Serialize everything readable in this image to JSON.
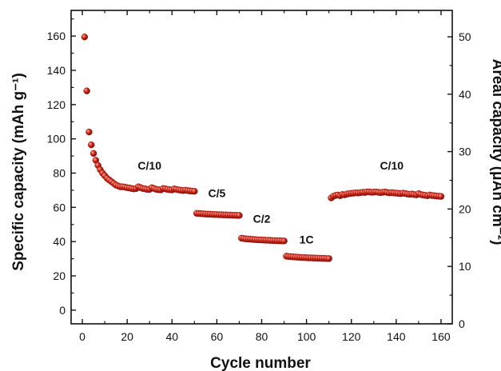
{
  "chart_data": {
    "type": "scatter",
    "title": "",
    "xlabel": "Cycle number",
    "ylabel": "Specific capacity (mAh g⁻¹)",
    "ylabel_right": "Areal capacity (μAh cm⁻²)",
    "xlim": [
      -5,
      165
    ],
    "ylim": [
      -8,
      175
    ],
    "ylim_right": [
      0,
      54.6
    ],
    "x_ticks": [
      "0",
      "20",
      "40",
      "60",
      "80",
      "100",
      "120",
      "140",
      "160"
    ],
    "y_ticks": [
      "0",
      "20",
      "40",
      "60",
      "80",
      "100",
      "120",
      "140",
      "160"
    ],
    "y_right_ticks": [
      "0",
      "10",
      "20",
      "30",
      "40",
      "50"
    ],
    "marker_color": "#d42a1c",
    "annotations": [
      {
        "text": "C/10",
        "x": 30,
        "y": 82
      },
      {
        "text": "C/5",
        "x": 60,
        "y": 66
      },
      {
        "text": "C/2",
        "x": 80,
        "y": 51
      },
      {
        "text": "1C",
        "x": 100,
        "y": 39
      },
      {
        "text": "C/10",
        "x": 138,
        "y": 82
      }
    ],
    "series": [
      {
        "x": [
          1,
          2,
          3,
          4,
          5,
          6,
          7,
          8,
          9,
          10,
          11,
          12,
          13,
          14,
          15,
          16,
          17,
          18,
          19,
          20,
          21,
          22,
          23,
          24,
          25,
          26,
          27,
          28,
          29,
          30,
          31,
          32,
          33,
          34,
          35,
          36,
          37,
          38,
          39,
          40,
          41,
          42,
          43,
          44,
          45,
          46,
          47,
          48,
          49,
          50,
          51,
          52,
          53,
          54,
          55,
          56,
          57,
          58,
          59,
          60,
          61,
          62,
          63,
          64,
          65,
          66,
          67,
          68,
          69,
          70,
          71,
          72,
          73,
          74,
          75,
          76,
          77,
          78,
          79,
          80,
          81,
          82,
          83,
          84,
          85,
          86,
          87,
          88,
          89,
          90,
          91,
          92,
          93,
          94,
          95,
          96,
          97,
          98,
          99,
          100,
          101,
          102,
          103,
          104,
          105,
          106,
          107,
          108,
          109,
          110,
          111,
          112,
          113,
          114,
          115,
          116,
          117,
          118,
          119,
          120,
          121,
          122,
          123,
          124,
          125,
          126,
          127,
          128,
          129,
          130,
          131,
          132,
          133,
          134,
          135,
          136,
          137,
          138,
          139,
          140,
          141,
          142,
          143,
          144,
          145,
          146,
          147,
          148,
          149,
          150,
          151,
          152,
          153,
          154,
          155,
          156,
          157,
          158,
          159,
          160
        ],
        "values": [
          159.5,
          128,
          104,
          96.5,
          91.5,
          87.5,
          84.5,
          82,
          80,
          78.5,
          77,
          76,
          75,
          74,
          73,
          72.5,
          72,
          72,
          71.8,
          71.5,
          71.3,
          71,
          70.8,
          71,
          72,
          71.5,
          71,
          70.8,
          70.5,
          70.5,
          71.5,
          71,
          70.5,
          70.3,
          70.2,
          71,
          70.8,
          70.5,
          70.3,
          70.2,
          70.8,
          70.5,
          70.2,
          70,
          69.8,
          70,
          69.8,
          69.6,
          69.5,
          69.4,
          56.5,
          56.4,
          56.3,
          56.2,
          56.1,
          56,
          56,
          55.9,
          55.8,
          55.8,
          55.7,
          55.7,
          55.6,
          55.6,
          55.5,
          55.5,
          55.4,
          55.4,
          55.3,
          55.3,
          42,
          41.8,
          41.6,
          41.5,
          41.4,
          41.3,
          41.2,
          41.1,
          41,
          41,
          40.9,
          40.8,
          40.8,
          40.7,
          40.6,
          40.6,
          40.5,
          40.5,
          40.4,
          40.4,
          31.5,
          31.3,
          31.2,
          31.1,
          31,
          30.9,
          30.8,
          30.7,
          30.7,
          30.6,
          30.5,
          30.5,
          30.4,
          30.4,
          30.3,
          30.3,
          30.2,
          30.2,
          30.1,
          30.1,
          65.5,
          66.5,
          67,
          67.2,
          66.8,
          67.5,
          67.3,
          67.8,
          68,
          68.2,
          68.3,
          68.5,
          68.4,
          68.6,
          68.8,
          68.7,
          69,
          69,
          68.8,
          68.9,
          69,
          68.8,
          68.6,
          68.8,
          69,
          68.7,
          68.5,
          68.6,
          68.4,
          68.3,
          68.2,
          68,
          68.3,
          68.1,
          67.8,
          67.6,
          67.8,
          67.5,
          67.3,
          68,
          67.5,
          67.2,
          67,
          66.8,
          67.2,
          66.9,
          66.8,
          66.6,
          66.5,
          66.4
        ]
      }
    ]
  }
}
